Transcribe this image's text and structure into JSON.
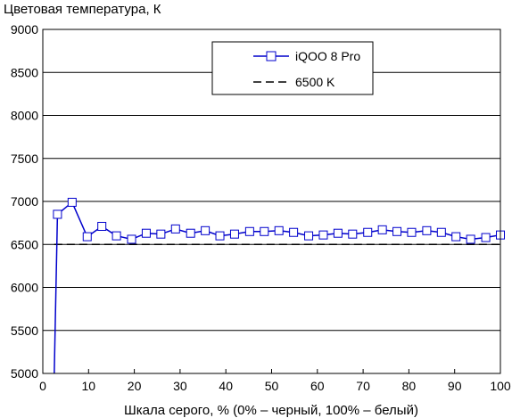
{
  "chart_data": {
    "type": "line",
    "title": "",
    "ylabel": "Цветовая температура, К",
    "xlabel": "Шкала серого, % (0% – черный, 100% – белый)",
    "xlim": [
      0,
      100
    ],
    "ylim": [
      5000,
      9000
    ],
    "xticks": [
      0,
      10,
      20,
      30,
      40,
      50,
      60,
      70,
      80,
      90,
      100
    ],
    "yticks": [
      5000,
      5500,
      6000,
      6500,
      7000,
      7500,
      8000,
      8500,
      9000
    ],
    "grid": "horizontal",
    "legend_position": "top-right",
    "series": [
      {
        "name": "iQOO 8 Pro",
        "color": "#0000cc",
        "marker": "open-square",
        "x": [
          2.5,
          3.2,
          6.4,
          9.7,
          12.9,
          16.1,
          19.4,
          22.6,
          25.8,
          29.0,
          32.3,
          35.5,
          38.7,
          41.9,
          45.2,
          48.4,
          51.6,
          54.8,
          58.1,
          61.3,
          64.5,
          67.7,
          71.0,
          74.2,
          77.4,
          80.6,
          83.9,
          87.1,
          90.3,
          93.5,
          96.8,
          100.0
        ],
        "y": [
          5000,
          6850,
          6990,
          6590,
          6710,
          6600,
          6560,
          6630,
          6620,
          6680,
          6630,
          6660,
          6600,
          6620,
          6650,
          6650,
          6660,
          6640,
          6600,
          6610,
          6630,
          6620,
          6640,
          6670,
          6650,
          6640,
          6660,
          6640,
          6590,
          6560,
          6580,
          6610
        ],
        "markers_from_index": 1
      },
      {
        "name": "6500 K",
        "color": "#000000",
        "style": "dashed",
        "x": [
          2.5,
          100
        ],
        "y": [
          6500,
          6500
        ]
      }
    ]
  }
}
